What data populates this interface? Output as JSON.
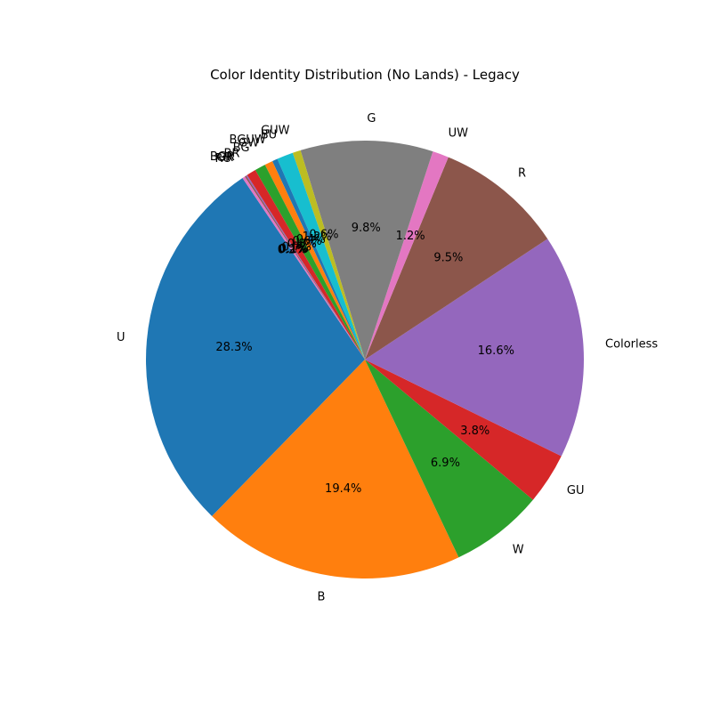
{
  "chart_data": {
    "type": "pie",
    "title": "Color Identity Distribution (No Lands) - Legacy",
    "start_angle_deg": 124,
    "direction": "counterclockwise",
    "slices": [
      {
        "label": "U",
        "value": 28.3,
        "pct_text": "28.3%",
        "color": "#1f77b4"
      },
      {
        "label": "B",
        "value": 19.4,
        "pct_text": "19.4%",
        "color": "#ff7f0e"
      },
      {
        "label": "W",
        "value": 6.9,
        "pct_text": "6.9%",
        "color": "#2ca02c"
      },
      {
        "label": "GU",
        "value": 3.8,
        "pct_text": "3.8%",
        "color": "#d62728"
      },
      {
        "label": "Colorless",
        "value": 16.6,
        "pct_text": "16.6%",
        "color": "#9467bd"
      },
      {
        "label": "R",
        "value": 9.5,
        "pct_text": "9.5%",
        "color": "#8c564b"
      },
      {
        "label": "UW",
        "value": 1.2,
        "pct_text": "1.2%",
        "color": "#e377c2"
      },
      {
        "label": "G",
        "value": 9.8,
        "pct_text": "9.8%",
        "color": "#7f7f7f"
      },
      {
        "label": "GUW",
        "value": 0.6,
        "pct_text": "0.6%",
        "color": "#bcbd22"
      },
      {
        "label": "BU",
        "value": 1.2,
        "pct_text": "1.2%",
        "color": "#17becf"
      },
      {
        "label": "BGUW",
        "value": 0.4,
        "pct_text": "0.4%",
        "color": "#1f77b4"
      },
      {
        "label": "GW",
        "value": 0.6,
        "pct_text": "0.6%",
        "color": "#ff7f0e"
      },
      {
        "label": "BG",
        "value": 0.8,
        "pct_text": "0.8%",
        "color": "#2ca02c"
      },
      {
        "label": "BR",
        "value": 0.7,
        "pct_text": "0.7%",
        "color": "#d62728"
      },
      {
        "label": "BGR",
        "value": 0.1,
        "pct_text": "0.1%",
        "color": "#9467bd"
      },
      {
        "label": "GR",
        "value": 0.1,
        "pct_text": "0.1%",
        "color": "#8c564b"
      },
      {
        "label": "RU",
        "value": 0.2,
        "pct_text": "0.2%",
        "color": "#e377c2"
      }
    ]
  }
}
